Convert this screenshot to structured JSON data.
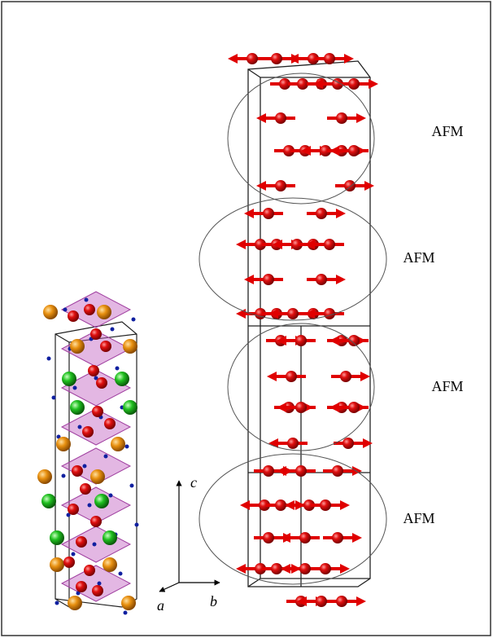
{
  "labels": {
    "magnetic_order": [
      "AFM",
      "AFM",
      "AFM",
      "AFM"
    ]
  },
  "axes": {
    "c": "c",
    "a": "a",
    "b": "b"
  }
}
